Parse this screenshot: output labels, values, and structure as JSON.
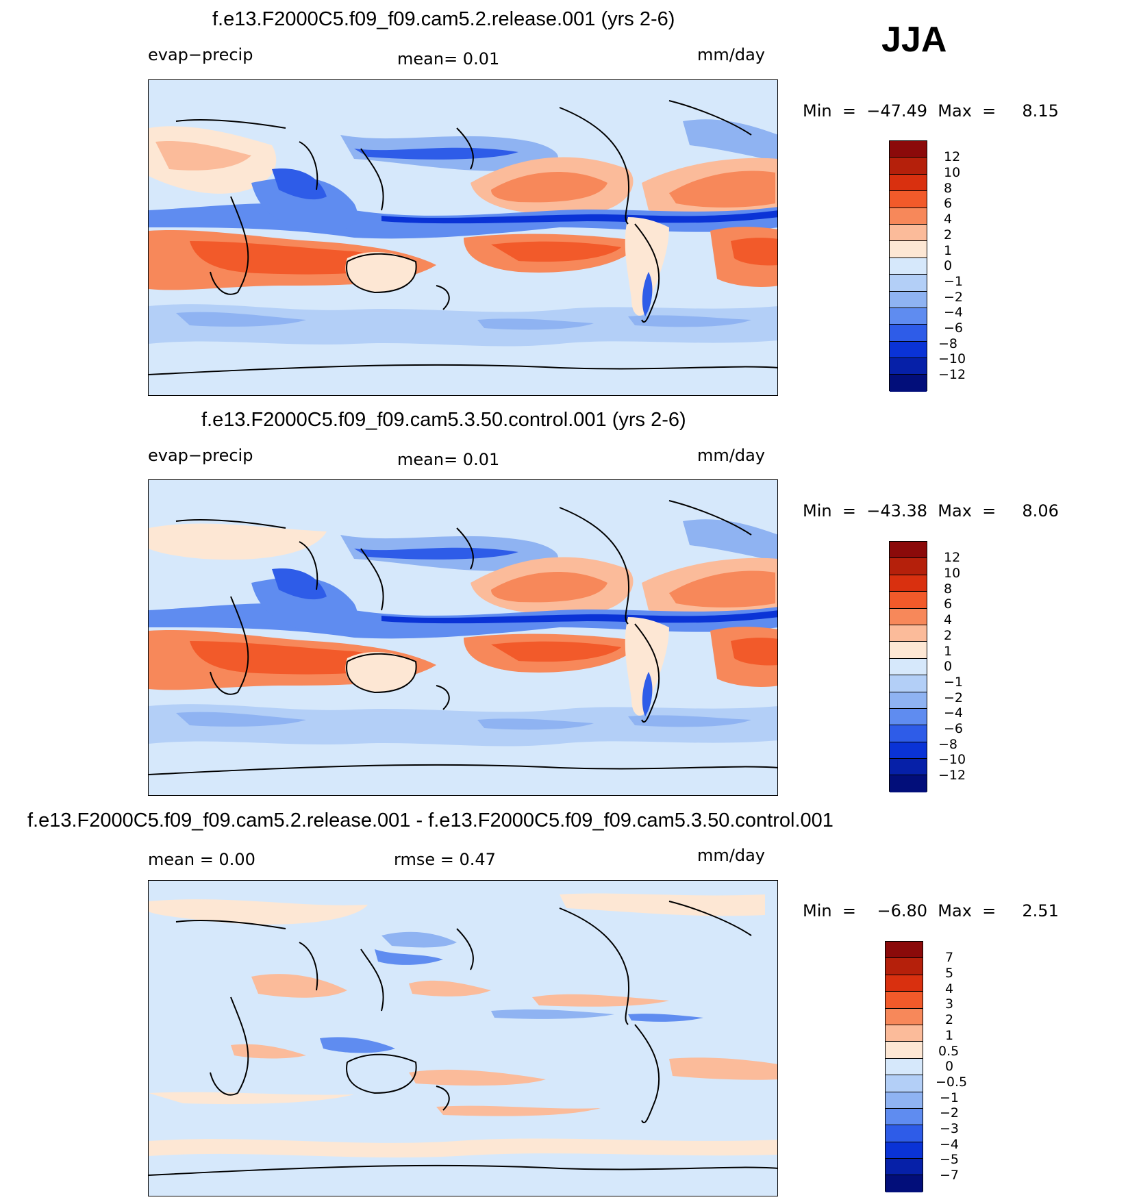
{
  "season": "JJA",
  "panels": [
    {
      "title": "f.e13.F2000C5.f09_f09.cam5.2.release.001 (yrs 2-6)",
      "left_label": "evap−precip",
      "center_label": "mean=     0.01",
      "units": "mm/day",
      "minmax": "Min  =  −47.49  Max  =     8.15"
    },
    {
      "title": "f.e13.F2000C5.f09_f09.cam5.3.50.control.001 (yrs 2-6)",
      "left_label": "evap−precip",
      "center_label": "mean=     0.01",
      "units": "mm/day",
      "minmax": "Min  =  −43.38  Max  =     8.06"
    },
    {
      "title": "f.e13.F2000C5.f09_f09.cam5.2.release.001 - f.e13.F2000C5.f09_f09.cam5.3.50.control.001",
      "left_label": "mean  =     0.00",
      "center_label": "rmse  =     0.47",
      "units": "mm/day",
      "minmax": "Min  =    −6.80  Max  =     2.51"
    }
  ],
  "colorbar_main": {
    "colors": [
      "#8b0a0a",
      "#b5200b",
      "#d9300f",
      "#f25a2a",
      "#f7885a",
      "#fbbb9a",
      "#fde7d4",
      "#d6e8fb",
      "#b3cff7",
      "#8fb3f2",
      "#5f8cf0",
      "#2e5ce8",
      "#0a33d6",
      "#0620a8",
      "#020e7a"
    ],
    "labels": [
      "12",
      "10",
      "8",
      "6",
      "4",
      "2",
      "1",
      "0",
      "−1",
      "−2",
      "−4",
      "−6",
      "−8",
      "−10",
      "−12"
    ]
  },
  "colorbar_diff": {
    "colors": [
      "#8b0a0a",
      "#b5200b",
      "#d9300f",
      "#f25a2a",
      "#f7885a",
      "#fbbb9a",
      "#fde7d4",
      "#d6e8fb",
      "#b3cff7",
      "#8fb3f2",
      "#5f8cf0",
      "#2e5ce8",
      "#0a33d6",
      "#0620a8",
      "#020e7a"
    ],
    "labels": [
      "7",
      "5",
      "4",
      "3",
      "2",
      "1",
      "0.5",
      "0",
      "−0.5",
      "−1",
      "−2",
      "−3",
      "−4",
      "−5",
      "−7"
    ]
  }
}
